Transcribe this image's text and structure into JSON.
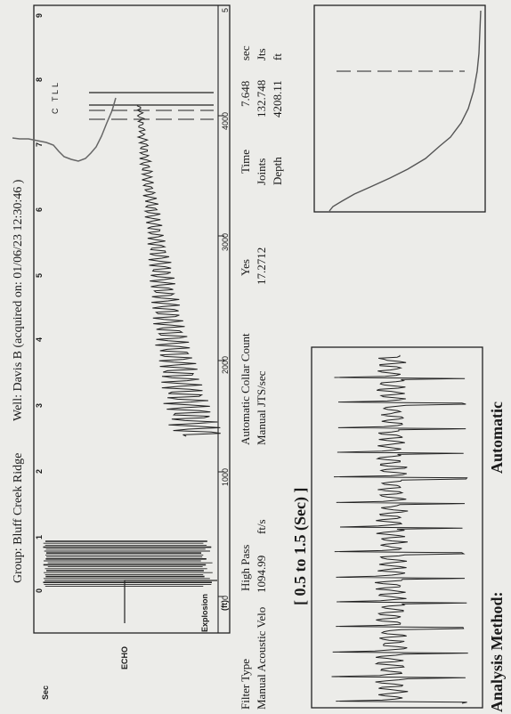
{
  "header": {
    "group": "Group: Bluff Creek Ridge",
    "well": "Well: Davis B (acquired on: 01/06/23 12:30:46 )"
  },
  "main_chart": {
    "sec_label": "Sec",
    "explosion_label": "Explosion",
    "echo_label": "ECHO",
    "ft_label": "(ft)",
    "markers": [
      "C",
      "T",
      "L",
      "L"
    ],
    "sec_ticks": [
      "0",
      "1",
      "2",
      "3",
      "4",
      "5",
      "6",
      "7",
      "8",
      "9"
    ],
    "ft_ticks": [
      "0",
      "1000",
      "2000",
      "3000",
      "4000",
      "5"
    ]
  },
  "params": {
    "filter_type_label": "Filter Type",
    "filter_type_value": "High Pass",
    "velocity_label": "Manual Acoustic Velo",
    "velocity_value": "1094.99",
    "velocity_unit": "ft/s",
    "collar_label": "Automatic Collar Count",
    "collar_value": "Yes",
    "jts_label": "Manual JTS/sec",
    "jts_value": "17.2712"
  },
  "results": {
    "time_label": "Time",
    "time_value": "7.648",
    "time_unit": "sec",
    "joints_label": "Joints",
    "joints_value": "132.748",
    "joints_unit": "Jts",
    "depth_label": "Depth",
    "depth_value": "4208.11",
    "depth_unit": "ft"
  },
  "zoom": {
    "range_label": "[ 0.5  to  1.5 (Sec) ]"
  },
  "footer": {
    "method_label": "Analysis Method:",
    "method_value": "Automatic"
  }
}
